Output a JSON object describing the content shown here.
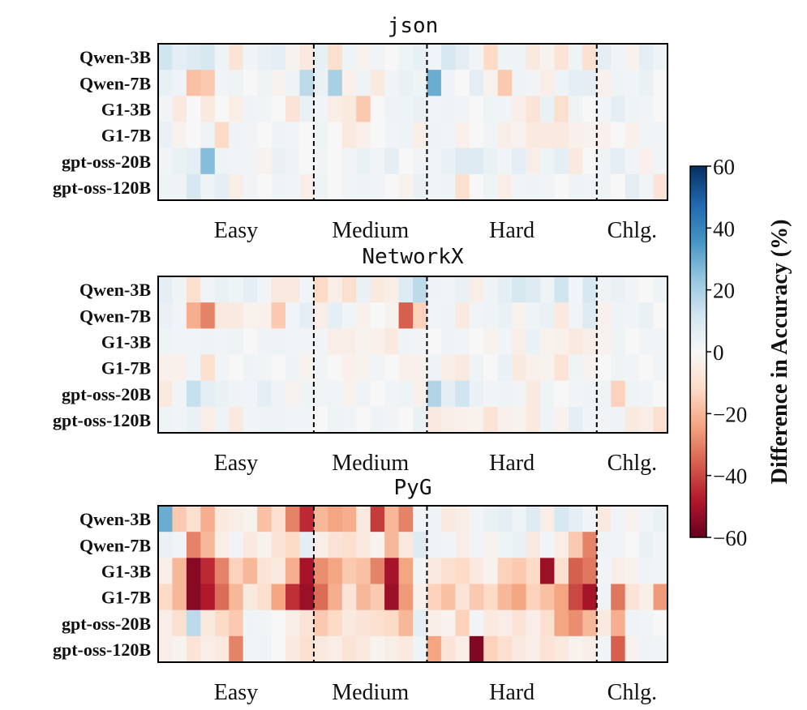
{
  "chart_data": {
    "type": "heatmap",
    "colorbar": {
      "label": "Difference in Accuracy (%)",
      "range": [
        -60,
        60
      ],
      "ticks": [
        60,
        40,
        20,
        0,
        -20,
        -40,
        -60
      ],
      "tick_labels": [
        "60",
        "40",
        "20",
        "0",
        "−20",
        "−40",
        "−60"
      ],
      "colormap": "RdBu"
    },
    "columns_per_panel": 36,
    "groups": [
      {
        "label": "Easy",
        "columns": 11
      },
      {
        "label": "Medium",
        "columns": 8
      },
      {
        "label": "Hard",
        "columns": 12
      },
      {
        "label": "Chlg.",
        "columns": 5
      }
    ],
    "rows": [
      "Qwen-3B",
      "Qwen-7B",
      "G1-3B",
      "G1-7B",
      "gpt-oss-20B",
      "gpt-oss-120B"
    ],
    "panels": [
      {
        "title": "json",
        "values": [
          [
            12,
            6,
            8,
            10,
            3,
            -8,
            2,
            4,
            6,
            -2,
            -6,
            5,
            -10,
            3,
            -2,
            2,
            0,
            3,
            5,
            2,
            10,
            6,
            2,
            -12,
            3,
            3,
            -6,
            -2,
            -8,
            3,
            -10,
            6,
            2,
            -2,
            6,
            3
          ],
          [
            5,
            3,
            -18,
            -16,
            2,
            3,
            0,
            3,
            -2,
            3,
            16,
            4,
            20,
            -3,
            3,
            -6,
            2,
            4,
            3,
            30,
            3,
            0,
            6,
            -2,
            -16,
            3,
            2,
            -4,
            3,
            6,
            6,
            -3,
            3,
            2,
            4,
            0
          ],
          [
            2,
            -6,
            0,
            -6,
            0,
            -4,
            3,
            2,
            0,
            -8,
            4,
            2,
            -4,
            -6,
            -16,
            0,
            3,
            3,
            4,
            2,
            3,
            2,
            0,
            3,
            2,
            -4,
            -8,
            4,
            -10,
            3,
            0,
            2,
            6,
            3,
            2,
            0
          ],
          [
            4,
            -2,
            0,
            3,
            -12,
            3,
            2,
            0,
            3,
            2,
            0,
            3,
            0,
            -6,
            -3,
            0,
            2,
            3,
            -4,
            3,
            2,
            -3,
            0,
            2,
            -4,
            -2,
            -6,
            -6,
            -6,
            -3,
            -2,
            -3,
            0,
            -3,
            2,
            2
          ],
          [
            2,
            4,
            6,
            26,
            3,
            2,
            2,
            -2,
            4,
            3,
            0,
            2,
            0,
            2,
            4,
            2,
            6,
            0,
            2,
            2,
            4,
            8,
            8,
            4,
            2,
            6,
            -4,
            3,
            6,
            -6,
            0,
            3,
            6,
            2,
            -3,
            2
          ],
          [
            3,
            3,
            10,
            3,
            6,
            -4,
            2,
            0,
            3,
            2,
            -4,
            3,
            0,
            2,
            3,
            2,
            0,
            -2,
            4,
            2,
            3,
            -10,
            0,
            3,
            -4,
            2,
            3,
            2,
            0,
            3,
            2,
            3,
            0,
            6,
            2,
            -8
          ]
        ]
      },
      {
        "title": "NetworkX",
        "values": [
          [
            6,
            3,
            -10,
            2,
            4,
            3,
            6,
            2,
            -6,
            -6,
            2,
            -12,
            -4,
            -10,
            4,
            -6,
            -4,
            8,
            16,
            3,
            2,
            4,
            -4,
            3,
            6,
            10,
            8,
            3,
            12,
            2,
            10,
            3,
            4,
            2,
            0,
            3
          ],
          [
            4,
            2,
            -22,
            -30,
            -6,
            -6,
            -2,
            -3,
            -16,
            2,
            6,
            -4,
            6,
            2,
            -3,
            0,
            -2,
            -36,
            -14,
            2,
            3,
            -6,
            2,
            3,
            4,
            -2,
            3,
            4,
            -6,
            2,
            8,
            -3,
            3,
            2,
            4,
            0
          ],
          [
            3,
            2,
            2,
            3,
            2,
            3,
            0,
            3,
            3,
            2,
            2,
            2,
            -4,
            -4,
            -2,
            -3,
            -6,
            3,
            2,
            0,
            3,
            2,
            0,
            -2,
            2,
            -4,
            4,
            -2,
            -3,
            -6,
            -4,
            -2,
            3,
            0,
            2,
            2
          ],
          [
            -3,
            -3,
            2,
            -10,
            2,
            0,
            3,
            2,
            0,
            3,
            -2,
            2,
            0,
            -3,
            -2,
            2,
            0,
            -3,
            -3,
            3,
            -4,
            -6,
            3,
            0,
            4,
            -6,
            -3,
            -2,
            -8,
            3,
            -2,
            0,
            3,
            2,
            0,
            2
          ],
          [
            -6,
            2,
            14,
            6,
            4,
            3,
            2,
            6,
            3,
            -2,
            3,
            2,
            2,
            -2,
            3,
            0,
            2,
            3,
            -3,
            18,
            6,
            12,
            4,
            2,
            3,
            2,
            -6,
            3,
            0,
            2,
            3,
            3,
            -14,
            3,
            2,
            0
          ],
          [
            3,
            2,
            4,
            -4,
            3,
            -6,
            2,
            3,
            3,
            2,
            2,
            0,
            3,
            2,
            0,
            3,
            2,
            0,
            4,
            -6,
            -4,
            -3,
            -2,
            -8,
            -3,
            -2,
            -6,
            3,
            -2,
            6,
            2,
            2,
            3,
            -6,
            -4,
            -10
          ]
        ]
      },
      {
        "title": "PyG",
        "values": [
          [
            30,
            -16,
            -10,
            -22,
            -6,
            -4,
            -2,
            -18,
            -10,
            -30,
            -45,
            -20,
            -24,
            -22,
            -6,
            -42,
            -20,
            -30,
            2,
            3,
            -6,
            -4,
            2,
            4,
            6,
            3,
            8,
            -4,
            10,
            6,
            2,
            -6,
            2,
            -2,
            2,
            4
          ],
          [
            4,
            2,
            -30,
            -20,
            -4,
            2,
            -6,
            -2,
            -8,
            -12,
            6,
            -4,
            -8,
            -10,
            -6,
            -2,
            -20,
            -6,
            8,
            3,
            2,
            -4,
            2,
            -2,
            3,
            4,
            -6,
            2,
            -4,
            -16,
            -30,
            3,
            2,
            0,
            4,
            2
          ],
          [
            -4,
            -20,
            -55,
            -45,
            -30,
            -14,
            -20,
            -8,
            -6,
            -22,
            -50,
            -28,
            -24,
            -16,
            -18,
            -30,
            -50,
            -24,
            2,
            -6,
            -10,
            -12,
            -6,
            -2,
            -14,
            -16,
            -12,
            -52,
            -10,
            -36,
            -32,
            2,
            -4,
            -2,
            3,
            2
          ],
          [
            -12,
            -20,
            -55,
            -48,
            -34,
            -20,
            -6,
            -10,
            -24,
            -44,
            -52,
            -34,
            -22,
            -8,
            -20,
            -16,
            -52,
            -26,
            -3,
            -14,
            -18,
            -8,
            -16,
            -12,
            -20,
            -24,
            -14,
            -18,
            -24,
            -40,
            -50,
            3,
            -32,
            -8,
            -4,
            -26
          ],
          [
            -4,
            -10,
            16,
            -6,
            -12,
            -16,
            3,
            2,
            0,
            -4,
            -8,
            -16,
            -12,
            -6,
            -8,
            -10,
            -12,
            -20,
            6,
            -4,
            -2,
            -14,
            2,
            -6,
            -4,
            -8,
            -4,
            -10,
            -24,
            -28,
            -20,
            -6,
            -22,
            3,
            2,
            0
          ],
          [
            -4,
            -2,
            -8,
            -4,
            -6,
            -30,
            2,
            3,
            0,
            -6,
            -10,
            -6,
            -4,
            -8,
            -6,
            -2,
            -4,
            -6,
            3,
            -24,
            -8,
            -4,
            -56,
            -14,
            -10,
            -6,
            -4,
            -8,
            -6,
            -2,
            -4,
            2,
            -36,
            -2,
            3,
            2
          ]
        ]
      }
    ]
  }
}
